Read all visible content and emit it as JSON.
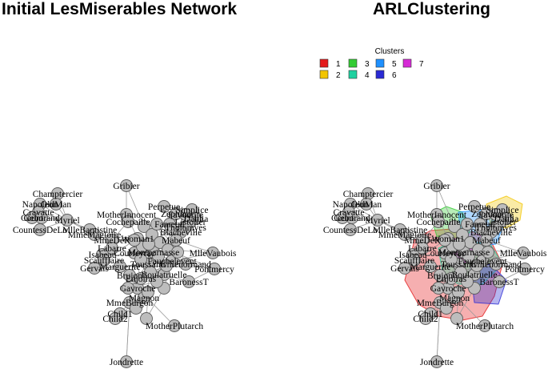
{
  "titles": {
    "left": "Initial LesMiserables Network",
    "right": "ARLClustering"
  },
  "legend": {
    "title": "Clusters",
    "entries": [
      {
        "label": "1",
        "color": "#e41a1c"
      },
      {
        "label": "2",
        "color": "#f2c500"
      },
      {
        "label": "3",
        "color": "#33cc33"
      },
      {
        "label": "4",
        "color": "#1fd1a0"
      },
      {
        "label": "5",
        "color": "#1e90ff"
      },
      {
        "label": "6",
        "color": "#2a2ad4"
      },
      {
        "label": "7",
        "color": "#d62ad6"
      }
    ]
  },
  "node_labels": [
    "Champtercier",
    "Napoleon",
    "OldMan",
    "Cravatte",
    "Count",
    "Geborand",
    "Myriel",
    "CountessDeLo",
    "MlleBaptistine",
    "MmeMagloire",
    "Gribier",
    "Perpetue",
    "Simplice",
    "Favourite",
    "Dahlia",
    "Zephine",
    "Fameuil",
    "Listolier",
    "Tholomyes",
    "Blacheville",
    "MotherInnocent",
    "Cochepaille",
    "MmeDeR",
    "Woman1",
    "Labarre",
    "Isabeau",
    "Scaufflaire",
    "Gervais",
    "Marguerite",
    "Fauchelevent",
    "MlleVaubois",
    "Mabeuf",
    "Gillenormand",
    "Pontmercy",
    "BaronessT",
    "Brujon",
    "Gavroche",
    "Magnon",
    "MmeBurgon",
    "Child1",
    "Child2",
    "MotherPlutarch",
    "Jondrette",
    "Montparnasse",
    "Boulatruelle",
    "Toussaint",
    "Enjolras",
    "Courfeyrac"
  ]
}
